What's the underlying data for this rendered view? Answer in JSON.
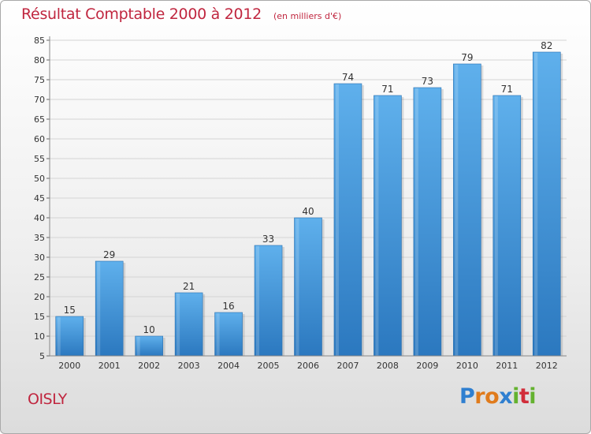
{
  "chart_data": {
    "type": "bar",
    "title": "Résultat Comptable 2000 à 2012",
    "subtitle": "(en milliers d'€)",
    "categories": [
      "2000",
      "2001",
      "2002",
      "2003",
      "2004",
      "2005",
      "2006",
      "2007",
      "2008",
      "2009",
      "2010",
      "2011",
      "2012"
    ],
    "values": [
      15,
      29,
      10,
      21,
      16,
      33,
      40,
      74,
      71,
      73,
      79,
      71,
      82
    ],
    "value_labels": [
      "15",
      "29",
      "10",
      "21",
      "16",
      "33",
      "40",
      "74",
      "71",
      "73",
      "79",
      "71",
      "82"
    ],
    "ylim": [
      5,
      85
    ],
    "yticks": [
      "5",
      "10",
      "15",
      "20",
      "25",
      "30",
      "35",
      "40",
      "45",
      "50",
      "55",
      "60",
      "65",
      "70",
      "75",
      "80",
      "85"
    ],
    "grid": true,
    "xlabel": "",
    "ylabel": "",
    "bar_color": "#3a8fd6"
  },
  "footer": {
    "commune": "OISLY",
    "brand": [
      "P",
      "r",
      "o",
      "x",
      "i",
      "t",
      "i"
    ],
    "brand_colors": [
      "#2f7fd0",
      "#e07b1c",
      "#e07b1c",
      "#2f7fd0",
      "#64b22f",
      "#d12d3a",
      "#64b22f"
    ]
  }
}
